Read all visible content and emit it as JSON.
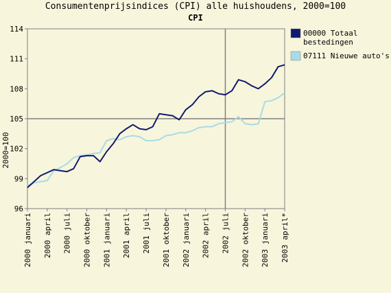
{
  "chart_data": {
    "type": "line",
    "title": "Consumentenprijsindices (CPI) alle huishoudens, 2000=100",
    "subtitle": "CPI",
    "ylabel": "2000=100",
    "ylim": [
      96,
      114
    ],
    "yticks": [
      96,
      99,
      102,
      105,
      108,
      111,
      114
    ],
    "grid": "major lines at 105 and at 2002 juli",
    "legend_position": "right",
    "x_tick_labels": [
      "2000 januari",
      "2000 april",
      "2000 juli",
      "2000 oktober",
      "2001 januari",
      "2001 april",
      "2001 juli",
      "2001 oktober",
      "2002 januari",
      "2002 april",
      "2002 juli",
      "2002 oktober",
      "2003 januari",
      "2003 april*"
    ],
    "x": [
      "2000-01",
      "2000-02",
      "2000-03",
      "2000-04",
      "2000-05",
      "2000-06",
      "2000-07",
      "2000-08",
      "2000-09",
      "2000-10",
      "2000-11",
      "2000-12",
      "2001-01",
      "2001-02",
      "2001-03",
      "2001-04",
      "2001-05",
      "2001-06",
      "2001-07",
      "2001-08",
      "2001-09",
      "2001-10",
      "2001-11",
      "2001-12",
      "2002-01",
      "2002-02",
      "2002-03",
      "2002-04",
      "2002-05",
      "2002-06",
      "2002-07",
      "2002-08",
      "2002-09",
      "2002-10",
      "2002-11",
      "2002-12",
      "2003-01",
      "2003-02",
      "2003-03",
      "2003-04"
    ],
    "series": [
      {
        "name": "00000 Totaal bestedingen",
        "color": "#101a6e",
        "values": [
          98.1,
          98.7,
          99.3,
          99.6,
          99.9,
          99.8,
          99.7,
          100.0,
          101.2,
          101.3,
          101.3,
          100.7,
          101.7,
          102.5,
          103.5,
          104.0,
          104.4,
          104.0,
          103.9,
          104.2,
          105.5,
          105.4,
          105.3,
          104.9,
          105.9,
          106.4,
          107.2,
          107.7,
          107.8,
          107.5,
          107.4,
          107.8,
          108.9,
          108.7,
          108.3,
          108.0,
          108.5,
          109.1,
          110.2,
          110.4
        ]
      },
      {
        "name": "07111 Nieuwe auto's",
        "color": "#a9dbe6",
        "values": [
          98.3,
          98.6,
          98.7,
          98.8,
          99.8,
          100.1,
          100.5,
          101.1,
          101.3,
          101.4,
          101.5,
          101.6,
          102.8,
          103.0,
          102.9,
          103.2,
          103.3,
          103.2,
          102.8,
          102.8,
          102.9,
          103.3,
          103.4,
          103.6,
          103.6,
          103.8,
          104.1,
          104.2,
          104.2,
          104.5,
          104.6,
          104.7,
          105.2,
          104.5,
          104.4,
          104.5,
          106.7,
          106.8,
          107.1,
          107.6
        ]
      }
    ]
  }
}
